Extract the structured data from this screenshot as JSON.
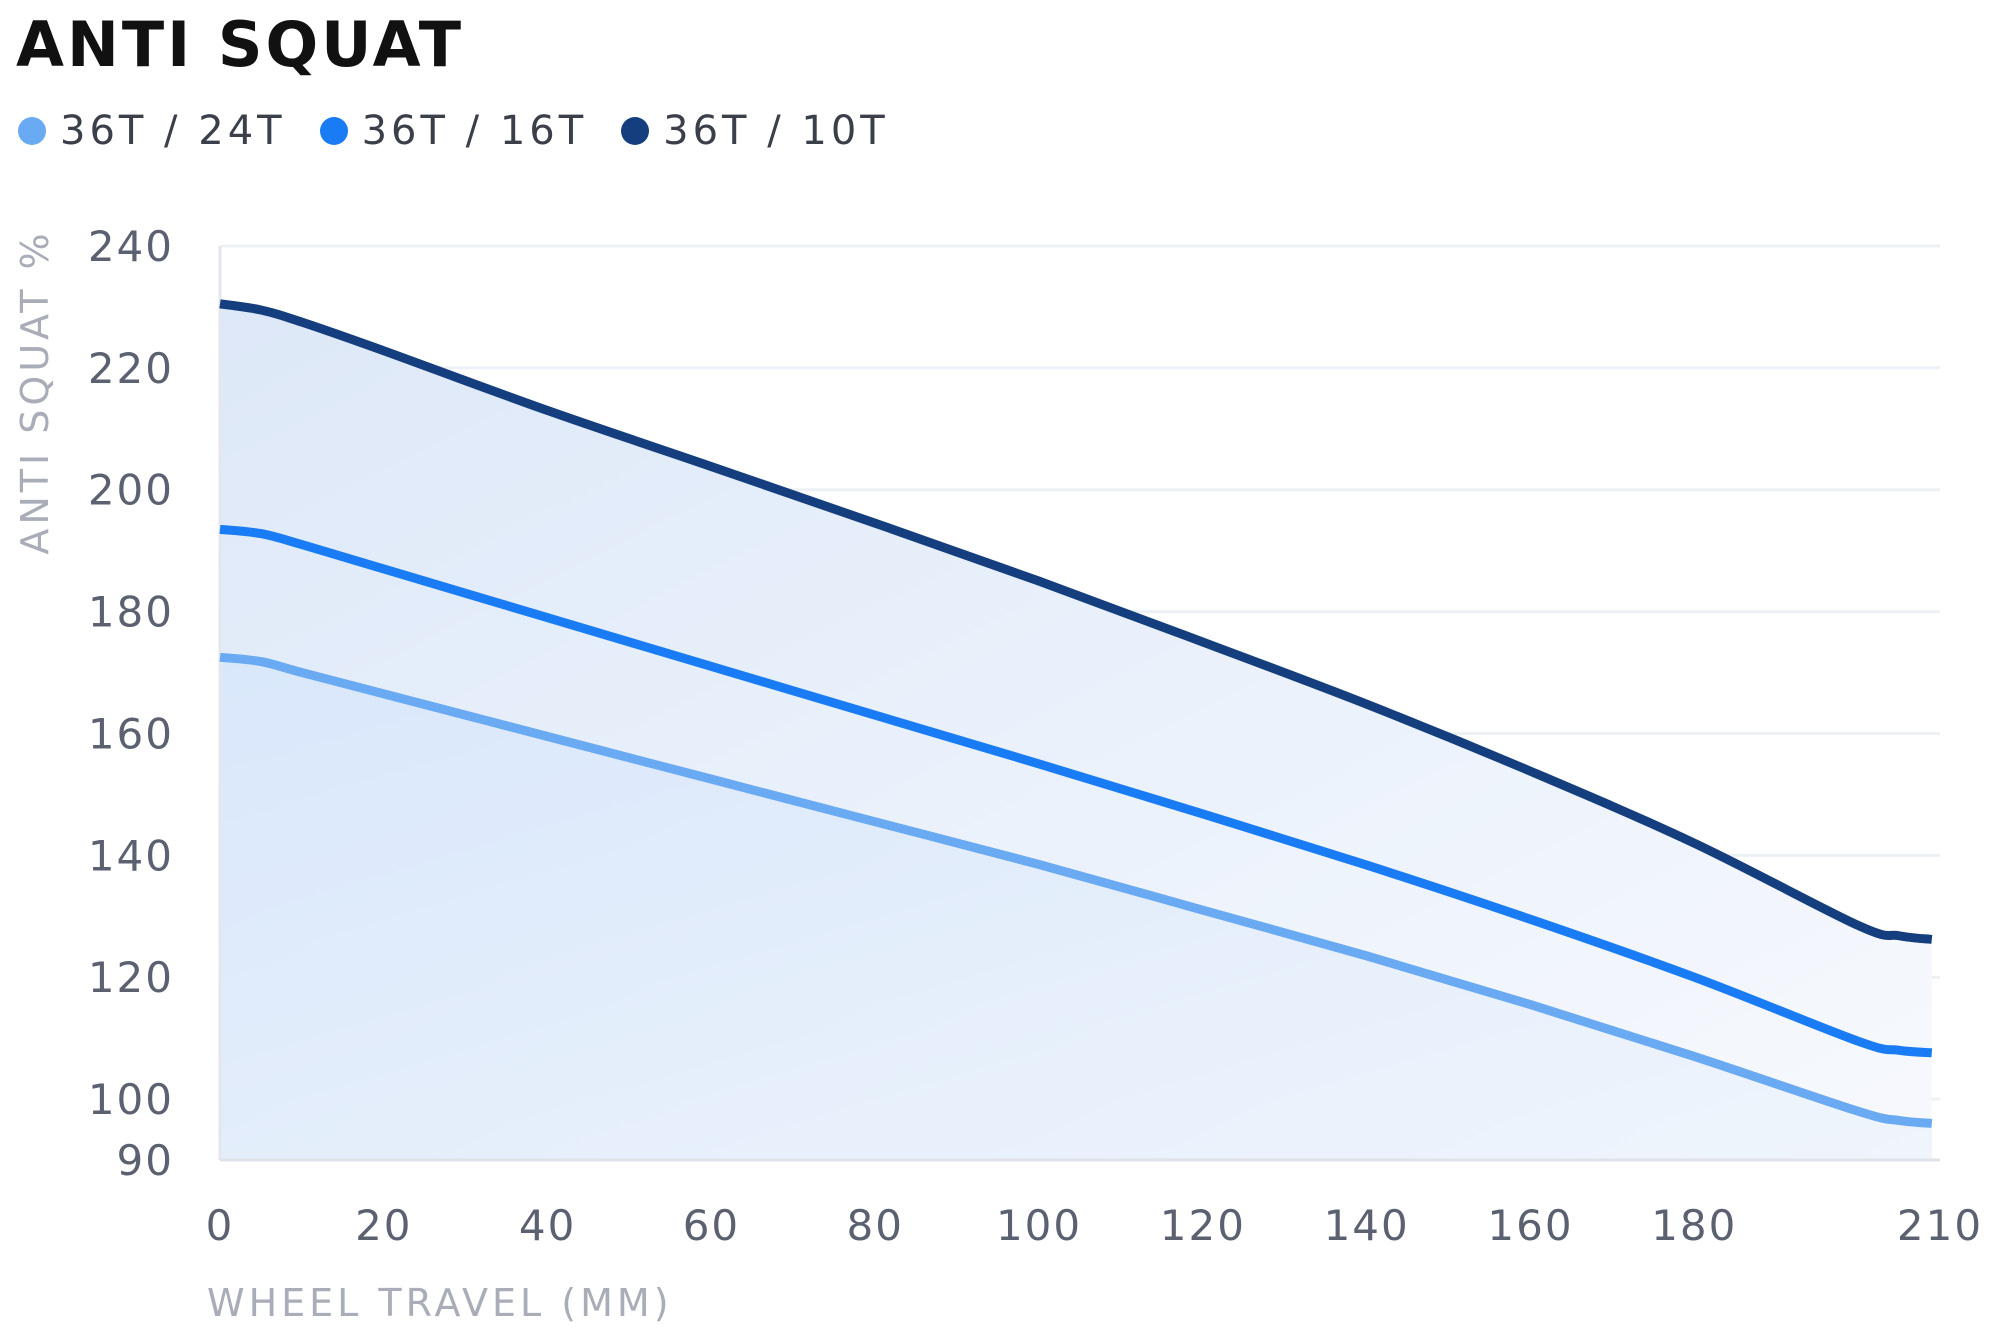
{
  "chart_data": {
    "type": "line",
    "title": "ANTI SQUAT",
    "xlabel": "WHEEL TRAVEL (MM)",
    "ylabel": "ANTI SQUAT %",
    "xlim": [
      0,
      210
    ],
    "ylim": [
      90,
      240
    ],
    "xticks": [
      0,
      20,
      40,
      60,
      80,
      100,
      120,
      140,
      160,
      180,
      210
    ],
    "yticks": [
      90,
      100,
      120,
      140,
      160,
      180,
      200,
      220,
      240
    ],
    "grid": true,
    "legend_position": "top-left",
    "x": [
      0,
      5,
      10,
      20,
      40,
      60,
      80,
      100,
      120,
      140,
      160,
      180,
      200,
      205,
      209
    ],
    "series": [
      {
        "name": "36T / 24T",
        "color": "#6aaaf2",
        "values": [
          172.5,
          171.8,
          170,
          166.5,
          159.5,
          152.5,
          145.5,
          138.5,
          131,
          123.5,
          115.5,
          107,
          98,
          96.5,
          96
        ]
      },
      {
        "name": "36T / 16T",
        "color": "#1a7cf5",
        "values": [
          193.5,
          192.8,
          191,
          187,
          179,
          171,
          163,
          155,
          146.8,
          138.4,
          129.5,
          120,
          109.5,
          108,
          107.6
        ]
      },
      {
        "name": "36T / 10T",
        "color": "#143e7d",
        "values": [
          230.5,
          229.5,
          227.5,
          222.8,
          213,
          203.8,
          194.5,
          185,
          175,
          164.8,
          153.8,
          142,
          128.5,
          126.8,
          126.2
        ]
      }
    ]
  }
}
